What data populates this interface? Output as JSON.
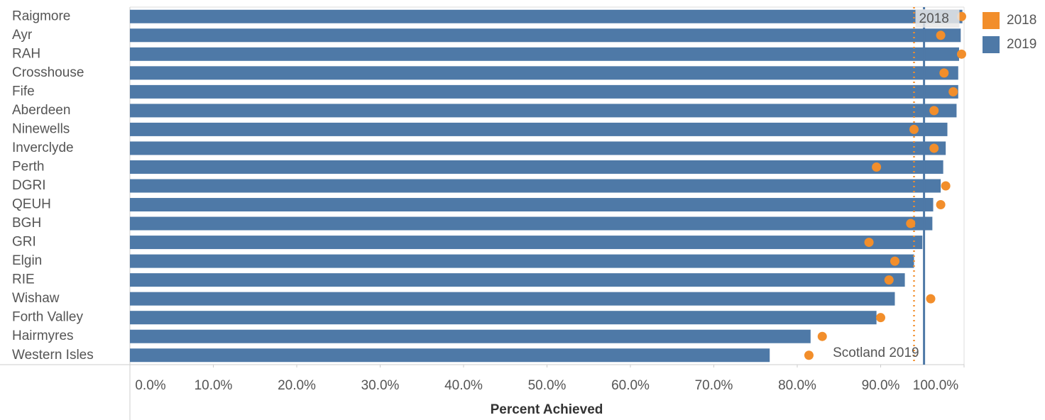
{
  "chart_data": {
    "type": "bar",
    "orientation": "horizontal",
    "xlabel": "Percent Achieved",
    "categories": [
      "Raigmore",
      "Ayr",
      "RAH",
      "Crosshouse",
      "Fife",
      "Aberdeen",
      "Ninewells",
      "Inverclyde",
      "Perth",
      "DGRI",
      "QEUH",
      "BGH",
      "GRI",
      "Elgin",
      "RIE",
      "Wishaw",
      "Forth Valley",
      "Hairmyres",
      "Western Isles"
    ],
    "series": [
      {
        "name": "2018",
        "color": "#f28e2b",
        "style": "dot",
        "values": [
          99.7,
          97.2,
          99.7,
          97.6,
          98.7,
          96.4,
          94.0,
          96.4,
          89.5,
          97.8,
          97.2,
          93.6,
          88.6,
          91.7,
          91.0,
          96.0,
          90.0,
          83.0,
          81.4
        ]
      },
      {
        "name": "2019",
        "color": "#4e79a7",
        "style": "bar",
        "values": [
          99.8,
          99.6,
          99.4,
          99.3,
          99.3,
          99.1,
          98.0,
          97.8,
          97.5,
          97.2,
          96.3,
          96.2,
          95.0,
          94.0,
          92.9,
          91.7,
          89.5,
          81.6,
          76.7
        ]
      }
    ],
    "reference_lines": [
      {
        "label": "2018",
        "value": 94.0,
        "color": "#f28e2b",
        "style": "dotted"
      },
      {
        "label": "Scotland 2019",
        "value": 95.2,
        "color": "#4e79a7",
        "style": "solid"
      }
    ],
    "xlim": [
      0,
      100
    ],
    "xticks": [
      {
        "value": 0,
        "label": "0.0%"
      },
      {
        "value": 10,
        "label": "10.0%"
      },
      {
        "value": 20,
        "label": "20.0%"
      },
      {
        "value": 30,
        "label": "30.0%"
      },
      {
        "value": 40,
        "label": "40.0%"
      },
      {
        "value": 50,
        "label": "50.0%"
      },
      {
        "value": 60,
        "label": "60.0%"
      },
      {
        "value": 70,
        "label": "70.0%"
      },
      {
        "value": 80,
        "label": "80.0%"
      },
      {
        "value": 90,
        "label": "90.0%"
      },
      {
        "value": 100,
        "label": "100.0%"
      }
    ],
    "grid": false,
    "legend": "right"
  }
}
